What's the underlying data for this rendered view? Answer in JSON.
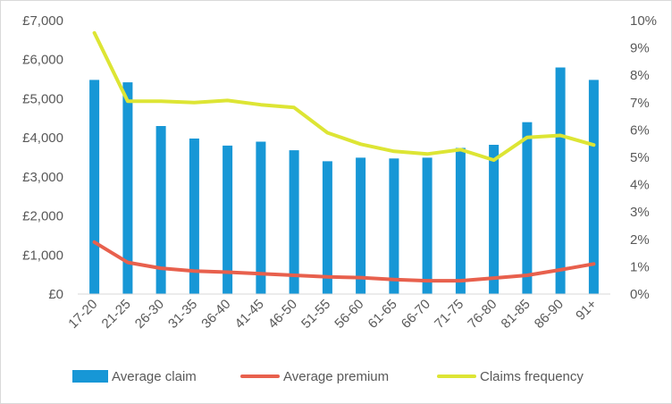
{
  "chart_data": {
    "type": "bar",
    "title": "",
    "categories": [
      "17-20",
      "21-25",
      "26-30",
      "31-35",
      "36-40",
      "41-45",
      "46-50",
      "51-55",
      "56-60",
      "61-65",
      "66-70",
      "71-75",
      "76-80",
      "81-85",
      "86-90",
      "91+"
    ],
    "series": [
      {
        "name": "Average claim",
        "type": "bar",
        "axis": "left",
        "color": "#1797d6",
        "values": [
          5480,
          5420,
          4300,
          3980,
          3800,
          3900,
          3680,
          3400,
          3490,
          3470,
          3490,
          3740,
          3820,
          4400,
          5800,
          5480
        ]
      },
      {
        "name": "Average premium",
        "type": "line",
        "axis": "left",
        "color": "#e8604d",
        "values": [
          1330,
          810,
          660,
          590,
          560,
          520,
          480,
          440,
          420,
          370,
          340,
          340,
          410,
          480,
          620,
          770
        ]
      },
      {
        "name": "Claims frequency",
        "type": "line",
        "axis": "right",
        "color": "#dde534",
        "values": [
          0.0955,
          0.0705,
          0.0705,
          0.07,
          0.0708,
          0.0692,
          0.0682,
          0.059,
          0.0548,
          0.0522,
          0.0512,
          0.0528,
          0.049,
          0.0573,
          0.058,
          0.0545
        ]
      }
    ],
    "yleft": {
      "lim": [
        0,
        7000
      ],
      "ticks": [
        "£0",
        "£1,000",
        "£2,000",
        "£3,000",
        "£4,000",
        "£5,000",
        "£6,000",
        "£7,000"
      ]
    },
    "yright": {
      "lim": [
        0,
        0.1
      ],
      "ticks": [
        "0%",
        "1%",
        "2%",
        "3%",
        "4%",
        "5%",
        "6%",
        "7%",
        "8%",
        "9%",
        "10%"
      ]
    },
    "grid": false,
    "legend": "bottom"
  }
}
